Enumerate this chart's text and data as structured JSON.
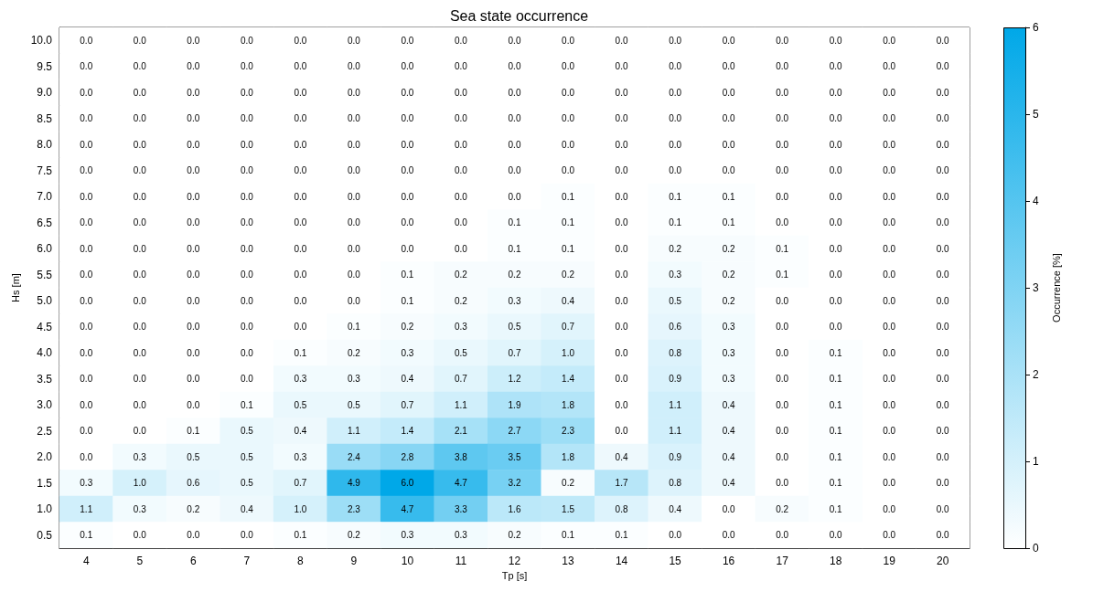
{
  "chart_data": {
    "type": "heatmap",
    "title": "Sea state occurrence",
    "xlabel": "Tp [s]",
    "ylabel": "Hs [m]",
    "clabel": "Occurrence [%]",
    "categories": [
      "4",
      "5",
      "6",
      "7",
      "8",
      "9",
      "10",
      "11",
      "12",
      "13",
      "14",
      "15",
      "16",
      "17",
      "18",
      "19",
      "20"
    ],
    "y_categories": [
      "10.0",
      "9.5",
      "9.0",
      "8.5",
      "8.0",
      "7.5",
      "7.0",
      "6.5",
      "6.0",
      "5.5",
      "5.0",
      "4.5",
      "4.0",
      "3.5",
      "3.0",
      "2.5",
      "2.0",
      "1.5",
      "1.0",
      "0.5"
    ],
    "cells": [
      [
        0,
        0,
        0,
        0,
        0,
        0,
        0,
        0,
        0,
        0,
        0,
        0,
        0,
        0,
        0,
        0,
        0
      ],
      [
        0,
        0,
        0,
        0,
        0,
        0,
        0,
        0,
        0,
        0,
        0,
        0,
        0,
        0,
        0,
        0,
        0
      ],
      [
        0,
        0,
        0,
        0,
        0,
        0,
        0,
        0,
        0,
        0,
        0,
        0,
        0,
        0,
        0,
        0,
        0
      ],
      [
        0,
        0,
        0,
        0,
        0,
        0,
        0,
        0,
        0,
        0,
        0,
        0,
        0,
        0,
        0,
        0,
        0
      ],
      [
        0,
        0,
        0,
        0,
        0,
        0,
        0,
        0,
        0,
        0,
        0,
        0,
        0,
        0,
        0,
        0,
        0
      ],
      [
        0,
        0,
        0,
        0,
        0,
        0,
        0,
        0,
        0,
        0,
        0,
        0,
        0,
        0,
        0,
        0,
        0
      ],
      [
        0,
        0,
        0,
        0,
        0,
        0,
        0,
        0,
        0,
        0.1,
        0,
        0.1,
        0.1,
        0,
        0,
        0,
        0
      ],
      [
        0,
        0,
        0,
        0,
        0,
        0,
        0,
        0,
        0.1,
        0.1,
        0,
        0.1,
        0.1,
        0,
        0,
        0,
        0
      ],
      [
        0,
        0,
        0,
        0,
        0,
        0,
        0,
        0,
        0.1,
        0.1,
        0,
        0.2,
        0.2,
        0.1,
        0,
        0,
        0
      ],
      [
        0,
        0,
        0,
        0,
        0,
        0,
        0.1,
        0.2,
        0.2,
        0.2,
        0,
        0.3,
        0.2,
        0.1,
        0,
        0,
        0
      ],
      [
        0,
        0,
        0,
        0,
        0,
        0,
        0.1,
        0.2,
        0.3,
        0.4,
        0,
        0.5,
        0.2,
        0,
        0,
        0,
        0
      ],
      [
        0,
        0,
        0,
        0,
        0,
        0.1,
        0.2,
        0.3,
        0.5,
        0.7,
        0,
        0.6,
        0.3,
        0,
        0,
        0,
        0
      ],
      [
        0,
        0,
        0,
        0,
        0.1,
        0.2,
        0.3,
        0.5,
        0.7,
        1.0,
        0,
        0.8,
        0.3,
        0,
        0.1,
        0,
        0
      ],
      [
        0,
        0,
        0,
        0,
        0.3,
        0.3,
        0.4,
        0.7,
        1.2,
        1.4,
        0,
        0.9,
        0.3,
        0,
        0.1,
        0,
        0
      ],
      [
        0,
        0,
        0,
        0.1,
        0.5,
        0.5,
        0.7,
        1.1,
        1.9,
        1.8,
        0,
        1.1,
        0.4,
        0,
        0.1,
        0,
        0
      ],
      [
        0,
        0,
        0.1,
        0.5,
        0.4,
        1.1,
        1.4,
        2.1,
        2.7,
        2.3,
        0,
        1.1,
        0.4,
        0,
        0.1,
        0,
        0
      ],
      [
        0,
        0.3,
        0.5,
        0.5,
        0.3,
        2.4,
        2.8,
        3.8,
        3.5,
        1.8,
        0.4,
        0.9,
        0.4,
        0,
        0.1,
        0,
        0
      ],
      [
        0.3,
        1.0,
        0.6,
        0.5,
        0.7,
        4.9,
        6.0,
        4.7,
        3.2,
        0.2,
        1.7,
        0.8,
        0.4,
        0,
        0.1,
        0,
        0
      ],
      [
        1.1,
        0.3,
        0.2,
        0.4,
        1.0,
        2.3,
        4.7,
        3.3,
        1.6,
        1.5,
        0.8,
        0.4,
        0,
        0.2,
        0.1,
        0,
        0
      ],
      [
        0.1,
        0,
        0,
        0,
        0.1,
        0.2,
        0.3,
        0.3,
        0.2,
        0.1,
        0.1,
        0,
        0,
        0,
        0,
        0,
        0
      ]
    ],
    "cell_labels": [
      [
        "0.0",
        "0.0",
        "0.0",
        "0.0",
        "0.0",
        "0.0",
        "0.0",
        "0.0",
        "0.0",
        "0.0",
        "0.0",
        "0.0",
        "0.0",
        "0.0",
        "0.0",
        "0.0",
        "0.0"
      ],
      [
        "0.0",
        "0.0",
        "0.0",
        "0.0",
        "0.0",
        "0.0",
        "0.0",
        "0.0",
        "0.0",
        "0.0",
        "0.0",
        "0.0",
        "0.0",
        "0.0",
        "0.0",
        "0.0",
        "0.0"
      ],
      [
        "0.0",
        "0.0",
        "0.0",
        "0.0",
        "0.0",
        "0.0",
        "0.0",
        "0.0",
        "0.0",
        "0.0",
        "0.0",
        "0.0",
        "0.0",
        "0.0",
        "0.0",
        "0.0",
        "0.0"
      ],
      [
        "0.0",
        "0.0",
        "0.0",
        "0.0",
        "0.0",
        "0.0",
        "0.0",
        "0.0",
        "0.0",
        "0.0",
        "0.0",
        "0.0",
        "0.0",
        "0.0",
        "0.0",
        "0.0",
        "0.0"
      ],
      [
        "0.0",
        "0.0",
        "0.0",
        "0.0",
        "0.0",
        "0.0",
        "0.0",
        "0.0",
        "0.0",
        "0.0",
        "0.0",
        "0.0",
        "0.0",
        "0.0",
        "0.0",
        "0.0",
        "0.0"
      ],
      [
        "0.0",
        "0.0",
        "0.0",
        "0.0",
        "0.0",
        "0.0",
        "0.0",
        "0.0",
        "0.0",
        "0.0",
        "0.0",
        "0.0",
        "0.0",
        "0.0",
        "0.0",
        "0.0",
        "0.0"
      ],
      [
        "0.0",
        "0.0",
        "0.0",
        "0.0",
        "0.0",
        "0.0",
        "0.0",
        "0.0",
        "0.0",
        "0.1",
        "0.0",
        "0.1",
        "0.1",
        "0.0",
        "0.0",
        "0.0",
        "0.0"
      ],
      [
        "0.0",
        "0.0",
        "0.0",
        "0.0",
        "0.0",
        "0.0",
        "0.0",
        "0.0",
        "0.1",
        "0.1",
        "0.0",
        "0.1",
        "0.1",
        "0.0",
        "0.0",
        "0.0",
        "0.0"
      ],
      [
        "0.0",
        "0.0",
        "0.0",
        "0.0",
        "0.0",
        "0.0",
        "0.0",
        "0.0",
        "0.1",
        "0.1",
        "0.0",
        "0.2",
        "0.2",
        "0.1",
        "0.0",
        "0.0",
        "0.0"
      ],
      [
        "0.0",
        "0.0",
        "0.0",
        "0.0",
        "0.0",
        "0.0",
        "0.1",
        "0.2",
        "0.2",
        "0.2",
        "0.0",
        "0.3",
        "0.2",
        "0.1",
        "0.0",
        "0.0",
        "0.0"
      ],
      [
        "0.0",
        "0.0",
        "0.0",
        "0.0",
        "0.0",
        "0.0",
        "0.1",
        "0.2",
        "0.3",
        "0.4",
        "0.0",
        "0.5",
        "0.2",
        "0.0",
        "0.0",
        "0.0",
        "0.0"
      ],
      [
        "0.0",
        "0.0",
        "0.0",
        "0.0",
        "0.0",
        "0.1",
        "0.2",
        "0.3",
        "0.5",
        "0.7",
        "0.0",
        "0.6",
        "0.3",
        "0.0",
        "0.0",
        "0.0",
        "0.0"
      ],
      [
        "0.0",
        "0.0",
        "0.0",
        "0.0",
        "0.1",
        "0.2",
        "0.3",
        "0.5",
        "0.7",
        "1.0",
        "0.0",
        "0.8",
        "0.3",
        "0.0",
        "0.1",
        "0.0",
        "0.0"
      ],
      [
        "0.0",
        "0.0",
        "0.0",
        "0.0",
        "0.3",
        "0.3",
        "0.4",
        "0.7",
        "1.2",
        "1.4",
        "0.0",
        "0.9",
        "0.3",
        "0.0",
        "0.1",
        "0.0",
        "0.0"
      ],
      [
        "0.0",
        "0.0",
        "0.0",
        "0.1",
        "0.5",
        "0.5",
        "0.7",
        "1.1",
        "1.9",
        "1.8",
        "0.0",
        "1.1",
        "0.4",
        "0.0",
        "0.1",
        "0.0",
        "0.0"
      ],
      [
        "0.0",
        "0.0",
        "0.1",
        "0.5",
        "0.4",
        "1.1",
        "1.4",
        "2.1",
        "2.7",
        "2.3",
        "0.0",
        "1.1",
        "0.4",
        "0.0",
        "0.1",
        "0.0",
        "0.0"
      ],
      [
        "0.0",
        "0.3",
        "0.5",
        "0.5",
        "0.3",
        "2.4",
        "2.8",
        "3.8",
        "3.5",
        "1.8",
        "0.4",
        "0.9",
        "0.4",
        "0.0",
        "0.1",
        "0.0",
        "0.0"
      ],
      [
        "0.3",
        "1.0",
        "0.6",
        "0.5",
        "0.7",
        "4.9",
        "6.0",
        "4.7",
        "3.2",
        "0.2",
        "1.7",
        "0.8",
        "0.4",
        "0.0",
        "0.1",
        "0.0",
        "0.0"
      ],
      [
        "1.1",
        "0.3",
        "0.2",
        "0.4",
        "1.0",
        "2.3",
        "4.7",
        "3.3",
        "1.6",
        "1.5",
        "0.8",
        "0.4",
        "0.0",
        "0.2",
        "0.1",
        "0.0",
        "0.0"
      ],
      [
        "0.1",
        "0.0",
        "0.0",
        "0.0",
        "0.1",
        "0.2",
        "0.3",
        "0.3",
        "0.2",
        "0.1",
        "0.1",
        "0.0",
        "0.0",
        "0.0",
        "0.0",
        "0.0",
        "0.0"
      ]
    ],
    "colors": [
      "#ffffff",
      "#00a8e8"
    ],
    "clim": [
      0,
      6
    ],
    "cticks": [
      0,
      1,
      2,
      3,
      4,
      5,
      6
    ]
  }
}
